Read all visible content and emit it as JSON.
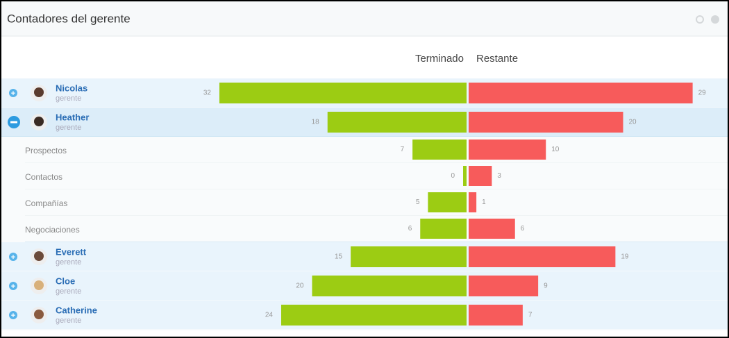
{
  "header": {
    "title": "Contadores del gerente"
  },
  "columns": {
    "done": "Terminado",
    "remaining": "Restante"
  },
  "colors": {
    "done": "#9ccc13",
    "remaining": "#f75b5b"
  },
  "rows": [
    {
      "name": "Nicolas",
      "role": "gerente",
      "done": 32,
      "remaining": 29,
      "expanded": false
    },
    {
      "name": "Heather",
      "role": "gerente",
      "done": 18,
      "remaining": 20,
      "expanded": true,
      "details": [
        {
          "label": "Prospectos",
          "done": 7,
          "remaining": 10
        },
        {
          "label": "Contactos",
          "done": 0,
          "remaining": 3
        },
        {
          "label": "Compañías",
          "done": 5,
          "remaining": 1
        },
        {
          "label": "Negociaciones",
          "done": 6,
          "remaining": 6
        }
      ]
    },
    {
      "name": "Everett",
      "role": "gerente",
      "done": 15,
      "remaining": 19,
      "expanded": false
    },
    {
      "name": "Cloe",
      "role": "gerente",
      "done": 20,
      "remaining": 9,
      "expanded": false
    },
    {
      "name": "Catherine",
      "role": "gerente",
      "done": 24,
      "remaining": 7,
      "expanded": false
    }
  ]
}
